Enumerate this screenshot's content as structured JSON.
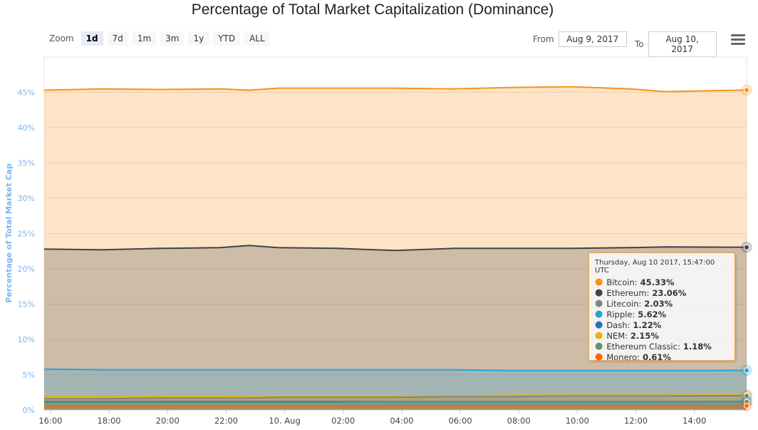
{
  "title": "Percentage of Total Market Capitalization (Dominance)",
  "zoom": {
    "label": "Zoom",
    "buttons": [
      "1d",
      "7d",
      "1m",
      "3m",
      "1y",
      "YTD",
      "ALL"
    ],
    "active": "1d"
  },
  "range": {
    "from_label": "From",
    "from_value": "Aug 9, 2017",
    "to_label": "To",
    "to_value": "Aug 10, 2017"
  },
  "menu_icon": "hamburger-menu-icon",
  "tooltip": {
    "date": "Thursday, Aug 10 2017, 15:47:00 UTC",
    "rows": [
      {
        "name": "Bitcoin",
        "value": "45.33%",
        "color": "#f7931a"
      },
      {
        "name": "Ethereum",
        "value": "23.06%",
        "color": "#434348"
      },
      {
        "name": "Litecoin",
        "value": "2.03%",
        "color": "#838383"
      },
      {
        "name": "Ripple",
        "value": "5.62%",
        "color": "#27a2db"
      },
      {
        "name": "Dash",
        "value": "1.22%",
        "color": "#1c75bc"
      },
      {
        "name": "NEM",
        "value": "2.15%",
        "color": "#e7b10a"
      },
      {
        "name": "Ethereum Classic",
        "value": "1.18%",
        "color": "#669073"
      },
      {
        "name": "Monero",
        "value": "0.61%",
        "color": "#ff6600"
      }
    ]
  },
  "chart_data": {
    "type": "area",
    "stacked": false,
    "title": "Percentage of Total Market Capitalization (Dominance)",
    "ylabel": "Percentage of Total Market Cap",
    "xlabel": "",
    "ylim": [
      0,
      50
    ],
    "y_ticks": [
      "0%",
      "5%",
      "10%",
      "15%",
      "20%",
      "25%",
      "30%",
      "35%",
      "40%",
      "45%"
    ],
    "x_ticks": [
      "16:00",
      "18:00",
      "20:00",
      "22:00",
      "10. Aug",
      "02:00",
      "04:00",
      "06:00",
      "08:00",
      "10:00",
      "12:00",
      "14:00"
    ],
    "x_range": [
      "Aug 9, 2017 15:47",
      "Aug 10, 2017 15:47"
    ],
    "grid": true,
    "x": [
      "2017-08-09 15:47",
      "2017-08-09 17:47",
      "2017-08-09 19:47",
      "2017-08-09 21:47",
      "2017-08-09 22:47",
      "2017-08-09 23:47",
      "2017-08-10 01:47",
      "2017-08-10 03:47",
      "2017-08-10 05:47",
      "2017-08-10 07:47",
      "2017-08-10 09:47",
      "2017-08-10 11:47",
      "2017-08-10 13:00",
      "2017-08-10 15:47"
    ],
    "series": [
      {
        "name": "Bitcoin",
        "color": "#f7931a",
        "values": [
          45.3,
          45.5,
          45.4,
          45.5,
          45.3,
          45.6,
          45.6,
          45.6,
          45.5,
          45.7,
          45.8,
          45.5,
          45.1,
          45.33
        ]
      },
      {
        "name": "Ethereum",
        "color": "#434348",
        "values": [
          22.8,
          22.7,
          22.9,
          23.0,
          23.3,
          23.0,
          22.9,
          22.6,
          22.9,
          22.9,
          22.9,
          23.0,
          23.1,
          23.06
        ]
      },
      {
        "name": "Ripple",
        "color": "#27a2db",
        "values": [
          5.8,
          5.7,
          5.7,
          5.7,
          5.7,
          5.7,
          5.7,
          5.7,
          5.7,
          5.6,
          5.6,
          5.6,
          5.6,
          5.62
        ]
      },
      {
        "name": "NEM",
        "color": "#e7b10a",
        "values": [
          1.9,
          1.9,
          1.9,
          1.9,
          2.0,
          2.0,
          2.0,
          2.0,
          2.0,
          2.1,
          2.1,
          2.1,
          2.1,
          2.15
        ]
      },
      {
        "name": "Litecoin",
        "color": "#838383",
        "values": [
          1.6,
          1.6,
          1.7,
          1.7,
          1.7,
          1.8,
          1.8,
          1.8,
          1.9,
          1.9,
          2.0,
          2.0,
          2.0,
          2.03
        ]
      },
      {
        "name": "Dash",
        "color": "#1c75bc",
        "values": [
          1.2,
          1.2,
          1.2,
          1.2,
          1.2,
          1.2,
          1.2,
          1.2,
          1.2,
          1.2,
          1.2,
          1.2,
          1.2,
          1.22
        ]
      },
      {
        "name": "Ethereum Classic",
        "color": "#669073",
        "values": [
          1.1,
          1.1,
          1.1,
          1.1,
          1.1,
          1.1,
          1.1,
          1.2,
          1.2,
          1.2,
          1.2,
          1.2,
          1.2,
          1.18
        ]
      },
      {
        "name": "Monero",
        "color": "#ff6600",
        "values": [
          0.6,
          0.6,
          0.6,
          0.6,
          0.6,
          0.6,
          0.6,
          0.6,
          0.6,
          0.6,
          0.6,
          0.6,
          0.6,
          0.61
        ]
      }
    ]
  }
}
